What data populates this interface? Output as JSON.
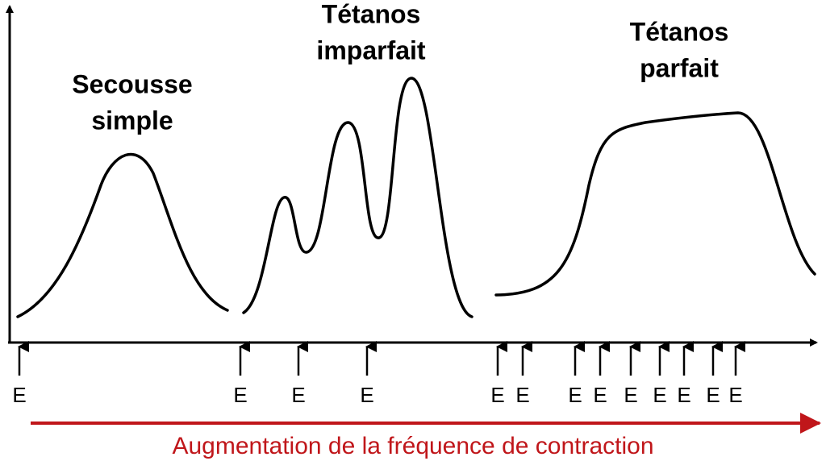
{
  "panels": [
    {
      "title": [
        "Secousse",
        "simple"
      ]
    },
    {
      "title": [
        "Tétanos",
        "imparfait"
      ]
    },
    {
      "title": [
        "Tétanos",
        "parfait"
      ]
    }
  ],
  "stimuli": [
    "E",
    "E",
    "E",
    "E",
    "E",
    "E",
    "E",
    "E",
    "E",
    "E",
    "E",
    "E",
    "E"
  ],
  "x_axis_label": "Augmentation de la fréquence de contraction"
}
